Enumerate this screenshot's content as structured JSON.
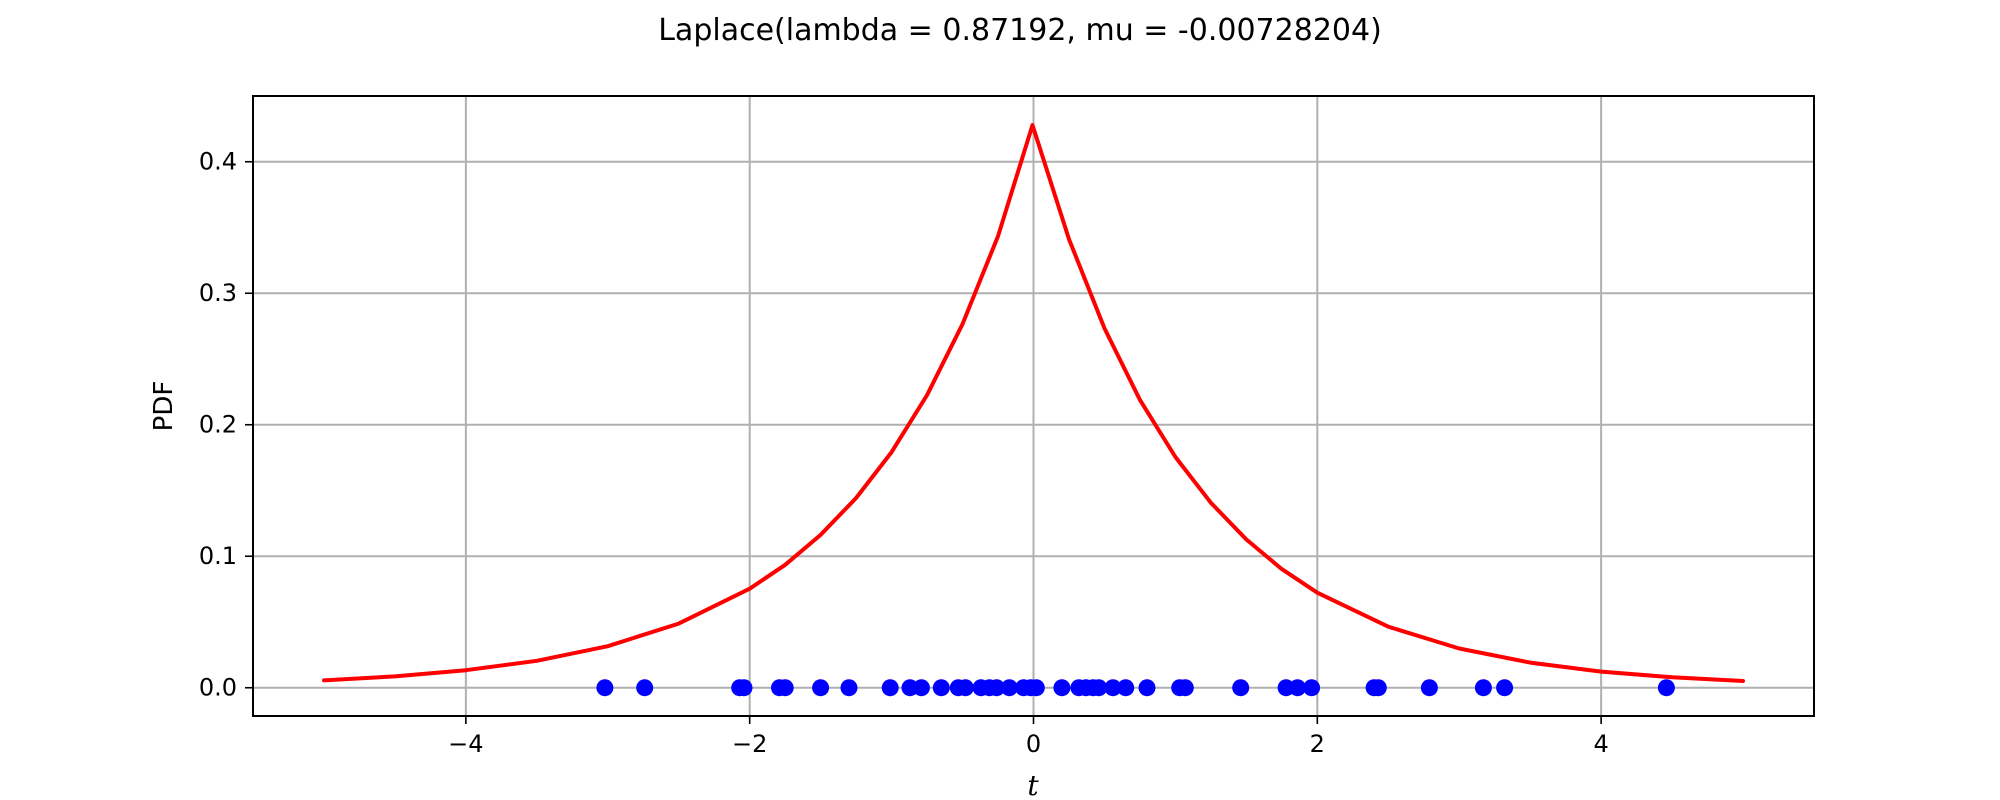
{
  "chart_data": {
    "type": "line",
    "title": "Laplace(lambda = 0.87192, mu = -0.00728204)",
    "xlabel": "t",
    "ylabel": "PDF",
    "xlim": [
      -5.5,
      5.5
    ],
    "ylim": [
      -0.0215,
      0.45
    ],
    "x_ticks": [
      -4,
      -2,
      0,
      2,
      4
    ],
    "x_tick_labels": [
      "−4",
      "−2",
      "0",
      "2",
      "4"
    ],
    "y_ticks": [
      0.0,
      0.1,
      0.2,
      0.3,
      0.4
    ],
    "y_tick_labels": [
      "0.0",
      "0.1",
      "0.2",
      "0.3",
      "0.4"
    ],
    "grid": true,
    "series": [
      {
        "type": "line",
        "color": "#ff0000",
        "x": [
          -5.0,
          -4.5,
          -4.0,
          -3.5,
          -3.0,
          -2.5,
          -2.0,
          -1.75,
          -1.5,
          -1.25,
          -1.0,
          -0.75,
          -0.5,
          -0.25,
          -0.00728204,
          0.25,
          0.5,
          0.75,
          1.0,
          1.25,
          1.5,
          1.75,
          2.0,
          2.5,
          3.0,
          3.5,
          4.0,
          4.5,
          5.0
        ],
        "y": [
          0.0056,
          0.0086,
          0.0133,
          0.0205,
          0.0316,
          0.0488,
          0.0753,
          0.0935,
          0.1162,
          0.1443,
          0.1792,
          0.2226,
          0.2765,
          0.3434,
          0.4279,
          0.3411,
          0.2733,
          0.219,
          0.1755,
          0.1406,
          0.1127,
          0.0902,
          0.0723,
          0.0464,
          0.0298,
          0.0191,
          0.0123,
          0.0079,
          0.0051
        ]
      },
      {
        "type": "scatter",
        "color": "#0000ff",
        "x": [
          -3.02,
          -2.74,
          -2.07,
          -2.04,
          -1.79,
          -1.75,
          -1.5,
          -1.3,
          -1.01,
          -0.87,
          -0.79,
          -0.65,
          -0.53,
          -0.48,
          -0.37,
          -0.31,
          -0.26,
          -0.17,
          -0.07,
          -0.02,
          0.02,
          0.2,
          0.32,
          0.37,
          0.42,
          0.46,
          0.56,
          0.65,
          0.8,
          1.03,
          1.07,
          1.46,
          1.78,
          1.86,
          1.96,
          2.4,
          2.43,
          2.79,
          3.17,
          3.32,
          4.46
        ],
        "y": [
          0,
          0,
          0,
          0,
          0,
          0,
          0,
          0,
          0,
          0,
          0,
          0,
          0,
          0,
          0,
          0,
          0,
          0,
          0,
          0,
          0,
          0,
          0,
          0,
          0,
          0,
          0,
          0,
          0,
          0,
          0,
          0,
          0,
          0,
          0,
          0,
          0,
          0,
          0,
          0,
          0
        ]
      }
    ]
  }
}
